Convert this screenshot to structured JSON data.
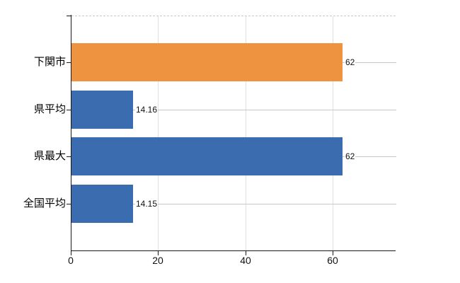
{
  "chart_data": {
    "type": "bar",
    "orientation": "horizontal",
    "title": "",
    "categories": [
      "下関市",
      "県平均",
      "県最大",
      "全国平均"
    ],
    "values": [
      62,
      14.16,
      62,
      14.15
    ],
    "value_labels": [
      "62",
      "14.16",
      "62",
      "14.15"
    ],
    "bar_colors": [
      "#ee9340",
      "#3b6cb0",
      "#3b6cb0",
      "#3b6cb0"
    ],
    "highlight_index": 0,
    "xlabel": "",
    "ylabel": "",
    "xlim": [
      0,
      74.4
    ],
    "x_ticks": [
      0,
      20,
      40,
      60
    ],
    "x_tick_labels": [
      "0",
      "20",
      "40",
      "60"
    ],
    "grid": true,
    "legend_position": "none"
  },
  "colors": {
    "background": "#ffffff",
    "axis": "#1a1a1a",
    "h_gridline": "#c3cbc0",
    "v_gridline": "#dce2dc",
    "top_border": "#c9c9c9",
    "highlight_bar": "#ee9340",
    "default_bar": "#3b6cb0",
    "label_text": "#000000"
  }
}
